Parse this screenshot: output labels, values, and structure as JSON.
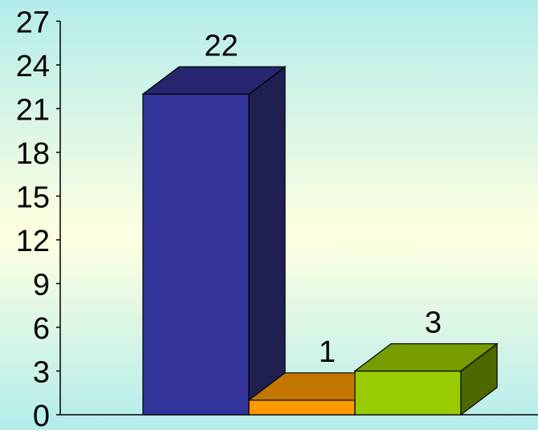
{
  "chart_data": {
    "type": "bar",
    "style": "3d",
    "categories": [
      "",
      "",
      ""
    ],
    "values": [
      22,
      1,
      3
    ],
    "data_labels": [
      "22",
      "1",
      "3"
    ],
    "colors": [
      {
        "front": "#333399",
        "top": "#27276f",
        "side": "#1f1f52"
      },
      {
        "front": "#ff9900",
        "top": "#c47700",
        "side": "#8a5300"
      },
      {
        "front": "#99cc00",
        "top": "#779c00",
        "side": "#4e6800"
      }
    ],
    "yticks": [
      "0",
      "3",
      "6",
      "9",
      "12",
      "15",
      "18",
      "21",
      "24",
      "27"
    ],
    "ylim": [
      0,
      27
    ],
    "title": "",
    "xlabel": "",
    "ylabel": "",
    "grid": false,
    "legend": "none",
    "background": {
      "top": "#b3ecec",
      "middle": "#ffffe0",
      "bottom": "#b3ecec"
    }
  }
}
